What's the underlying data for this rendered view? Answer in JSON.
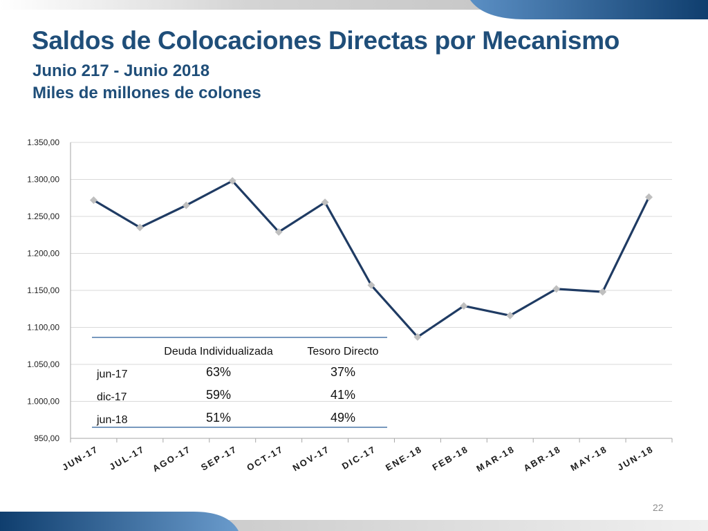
{
  "slide": {
    "title": "Saldos de Colocaciones Directas por Mecanismo",
    "subtitle_period": "Junio 217 - Junio 2018",
    "subtitle_units": "Miles de millones de colones",
    "page_number": "22"
  },
  "colors": {
    "title": "#1f4e79",
    "line": "#1f3b63",
    "marker": "#bfbfbf",
    "grid": "#d9d9d9",
    "table_rule": "#4a76a8",
    "decor_blue": "#1f5a8c",
    "decor_gray": "#c8c8c8"
  },
  "chart_data": {
    "type": "line",
    "categories": [
      "JUN-17",
      "JUL-17",
      "AGO-17",
      "SEP-17",
      "OCT-17",
      "NOV-17",
      "DIC-17",
      "ENE-18",
      "FEB-18",
      "MAR-18",
      "ABR-18",
      "MAY-18",
      "JUN-18"
    ],
    "series": [
      {
        "values": [
          1272,
          1235,
          1265,
          1298,
          1229,
          1269,
          1157,
          1087,
          1129,
          1116,
          1152,
          1148,
          1276
        ]
      }
    ],
    "ylim": [
      950,
      1350
    ],
    "yticks": [
      950,
      1000,
      1050,
      1100,
      1150,
      1200,
      1250,
      1300,
      1350
    ],
    "ytick_labels": [
      "950,00",
      "1.000,00",
      "1.050,00",
      "1.100,00",
      "1.150,00",
      "1.200,00",
      "1.250,00",
      "1.300,00",
      "1.350,00"
    ],
    "grid": true,
    "marker": "diamond"
  },
  "table": {
    "headers": [
      "",
      "Deuda Individualizada",
      "Tesoro Directo"
    ],
    "rows": [
      [
        "jun-17",
        "63%",
        "37%"
      ],
      [
        "dic-17",
        "59%",
        "41%"
      ],
      [
        "jun-18",
        "51%",
        "49%"
      ]
    ]
  }
}
